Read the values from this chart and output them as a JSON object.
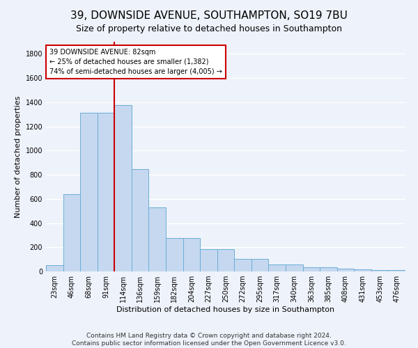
{
  "title": "39, DOWNSIDE AVENUE, SOUTHAMPTON, SO19 7BU",
  "subtitle": "Size of property relative to detached houses in Southampton",
  "xlabel": "Distribution of detached houses by size in Southampton",
  "ylabel": "Number of detached properties",
  "footnote1": "Contains HM Land Registry data © Crown copyright and database right 2024.",
  "footnote2": "Contains public sector information licensed under the Open Government Licence v3.0.",
  "bar_labels": [
    "23sqm",
    "46sqm",
    "68sqm",
    "91sqm",
    "114sqm",
    "136sqm",
    "159sqm",
    "182sqm",
    "204sqm",
    "227sqm",
    "250sqm",
    "272sqm",
    "295sqm",
    "317sqm",
    "340sqm",
    "363sqm",
    "385sqm",
    "408sqm",
    "431sqm",
    "453sqm",
    "476sqm"
  ],
  "bar_values": [
    50,
    640,
    1310,
    1310,
    1375,
    845,
    530,
    275,
    275,
    185,
    185,
    105,
    105,
    60,
    60,
    35,
    35,
    25,
    15,
    10,
    10
  ],
  "bar_color": "#c5d8f0",
  "bar_edge_color": "#6baed6",
  "vline_x_index": 3.5,
  "annotation_line1": "39 DOWNSIDE AVENUE: 82sqm",
  "annotation_line2": "← 25% of detached houses are smaller (1,382)",
  "annotation_line3": "74% of semi-detached houses are larger (4,005) →",
  "annotation_box_color": "#ffffff",
  "annotation_border_color": "#cc0000",
  "vline_color": "#cc0000",
  "ylim": [
    0,
    1900
  ],
  "yticks": [
    0,
    200,
    400,
    600,
    800,
    1000,
    1200,
    1400,
    1600,
    1800
  ],
  "background_color": "#eef2fa",
  "grid_color": "#ffffff",
  "title_fontsize": 11,
  "subtitle_fontsize": 9,
  "axis_label_fontsize": 8,
  "tick_fontsize": 7,
  "footnote_fontsize": 6.5
}
